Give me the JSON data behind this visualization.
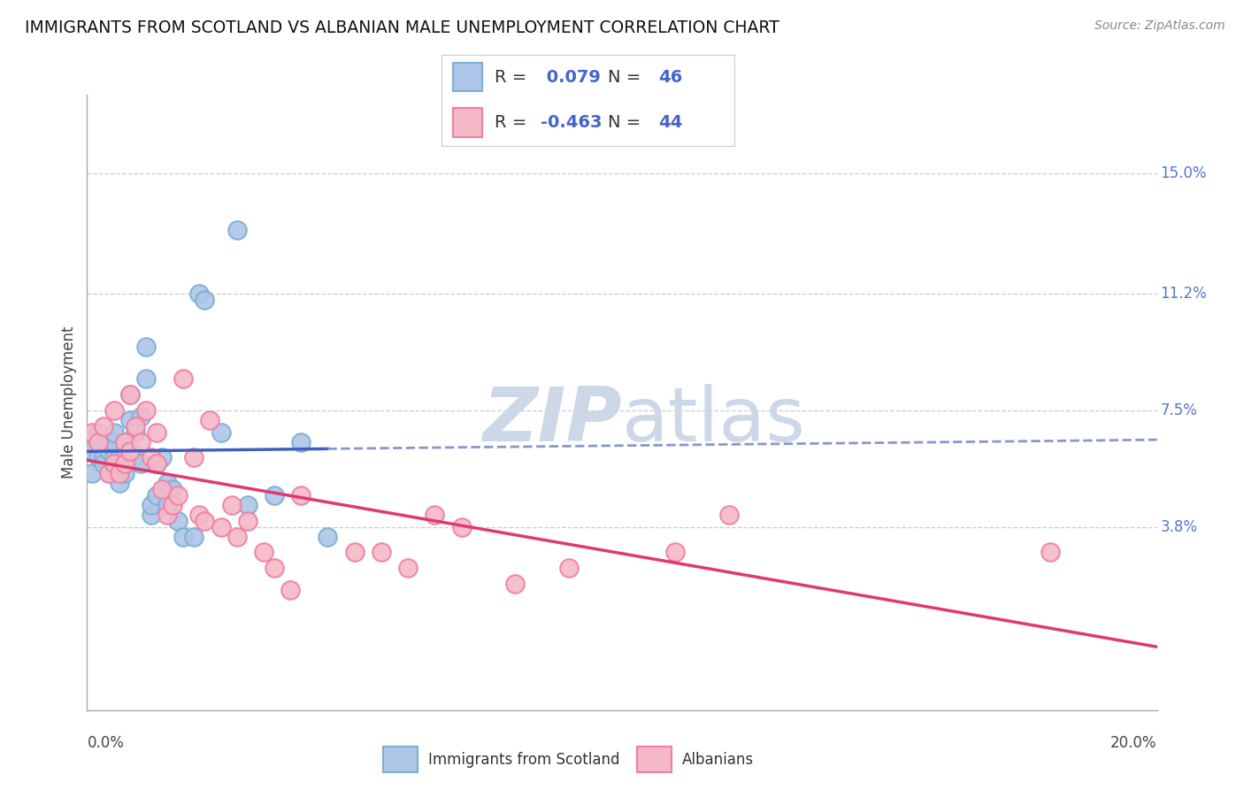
{
  "title": "IMMIGRANTS FROM SCOTLAND VS ALBANIAN MALE UNEMPLOYMENT CORRELATION CHART",
  "source": "Source: ZipAtlas.com",
  "ylabel": "Male Unemployment",
  "ytick_labels": [
    "15.0%",
    "11.2%",
    "7.5%",
    "3.8%"
  ],
  "ytick_values": [
    0.15,
    0.112,
    0.075,
    0.038
  ],
  "xlim": [
    0.0,
    0.2
  ],
  "ylim": [
    -0.02,
    0.175
  ],
  "legend_blue_r": "0.079",
  "legend_blue_n": "46",
  "legend_pink_r": "-0.463",
  "legend_pink_n": "44",
  "blue_scatter_x": [
    0.001,
    0.001,
    0.002,
    0.002,
    0.003,
    0.003,
    0.003,
    0.004,
    0.004,
    0.005,
    0.005,
    0.005,
    0.005,
    0.006,
    0.006,
    0.006,
    0.007,
    0.007,
    0.007,
    0.008,
    0.008,
    0.009,
    0.009,
    0.01,
    0.01,
    0.011,
    0.011,
    0.012,
    0.012,
    0.013,
    0.013,
    0.014,
    0.015,
    0.015,
    0.016,
    0.017,
    0.018,
    0.02,
    0.021,
    0.022,
    0.025,
    0.028,
    0.03,
    0.035,
    0.04,
    0.045
  ],
  "blue_scatter_y": [
    0.062,
    0.055,
    0.068,
    0.06,
    0.065,
    0.06,
    0.058,
    0.055,
    0.062,
    0.058,
    0.06,
    0.065,
    0.068,
    0.052,
    0.057,
    0.06,
    0.055,
    0.06,
    0.065,
    0.08,
    0.072,
    0.068,
    0.06,
    0.073,
    0.058,
    0.095,
    0.085,
    0.042,
    0.045,
    0.048,
    0.058,
    0.06,
    0.052,
    0.045,
    0.05,
    0.04,
    0.035,
    0.035,
    0.112,
    0.11,
    0.068,
    0.132,
    0.045,
    0.048,
    0.065,
    0.035
  ],
  "pink_scatter_x": [
    0.001,
    0.002,
    0.003,
    0.004,
    0.005,
    0.005,
    0.006,
    0.007,
    0.007,
    0.008,
    0.008,
    0.009,
    0.01,
    0.011,
    0.012,
    0.013,
    0.013,
    0.014,
    0.015,
    0.016,
    0.017,
    0.018,
    0.02,
    0.021,
    0.022,
    0.023,
    0.025,
    0.027,
    0.028,
    0.03,
    0.033,
    0.035,
    0.038,
    0.04,
    0.05,
    0.055,
    0.06,
    0.065,
    0.07,
    0.08,
    0.09,
    0.11,
    0.12,
    0.18
  ],
  "pink_scatter_y": [
    0.068,
    0.065,
    0.07,
    0.055,
    0.058,
    0.075,
    0.055,
    0.058,
    0.065,
    0.062,
    0.08,
    0.07,
    0.065,
    0.075,
    0.06,
    0.058,
    0.068,
    0.05,
    0.042,
    0.045,
    0.048,
    0.085,
    0.06,
    0.042,
    0.04,
    0.072,
    0.038,
    0.045,
    0.035,
    0.04,
    0.03,
    0.025,
    0.018,
    0.048,
    0.03,
    0.03,
    0.025,
    0.042,
    0.038,
    0.02,
    0.025,
    0.03,
    0.042,
    0.03
  ],
  "blue_color": "#aec6e8",
  "blue_edge": "#7aafd4",
  "pink_color": "#f5b8c8",
  "pink_edge": "#f080a0",
  "blue_line_solid_color": "#4060c0",
  "blue_line_dash_color": "#8898c8",
  "pink_line_color": "#e03870",
  "grid_color": "#cccccc",
  "background_color": "#ffffff",
  "watermark_color": "#ccd8e8"
}
